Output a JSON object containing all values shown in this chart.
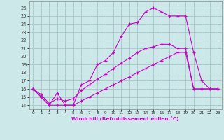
{
  "xlabel": "Windchill (Refroidissement éolien,°C)",
  "background_color": "#cce8e8",
  "grid_color": "#aacccc",
  "line_color": "#cc00cc",
  "x_ticks": [
    0,
    1,
    2,
    3,
    4,
    5,
    6,
    7,
    8,
    9,
    10,
    11,
    12,
    13,
    14,
    15,
    16,
    17,
    18,
    19,
    20,
    21,
    22,
    23
  ],
  "y_ticks": [
    14,
    15,
    16,
    17,
    18,
    19,
    20,
    21,
    22,
    23,
    24,
    25,
    26
  ],
  "xlim": [
    -0.5,
    23.5
  ],
  "ylim": [
    13.5,
    26.8
  ],
  "line1_x": [
    0,
    1,
    2,
    3,
    4,
    5,
    6,
    7,
    8,
    9,
    10,
    11,
    12,
    13,
    14,
    15,
    16,
    17,
    18,
    19,
    20,
    21,
    22,
    23
  ],
  "line1_y": [
    16,
    15,
    14,
    15.5,
    14,
    14,
    16.5,
    17,
    19,
    19.5,
    20.5,
    22.5,
    24,
    24.2,
    25.5,
    26,
    25.5,
    25,
    25,
    25,
    20.5,
    17,
    16,
    16
  ],
  "line2_x": [
    0,
    1,
    2,
    3,
    4,
    5,
    6,
    7,
    8,
    9,
    10,
    11,
    12,
    13,
    14,
    15,
    16,
    17,
    18,
    19,
    20,
    21,
    22,
    23
  ],
  "line2_y": [
    16,
    15.3,
    14.2,
    14.8,
    14.5,
    14.8,
    15.8,
    16.5,
    17.2,
    17.8,
    18.5,
    19.2,
    19.8,
    20.5,
    21.0,
    21.2,
    21.5,
    21.5,
    21.0,
    21.0,
    16,
    16,
    16,
    16
  ],
  "line3_x": [
    0,
    1,
    2,
    3,
    4,
    5,
    6,
    7,
    8,
    9,
    10,
    11,
    12,
    13,
    14,
    15,
    16,
    17,
    18,
    19,
    20,
    21,
    22,
    23
  ],
  "line3_y": [
    16,
    15,
    14,
    14,
    14,
    14,
    14.5,
    15,
    15.5,
    16,
    16.5,
    17,
    17.5,
    18,
    18.5,
    19,
    19.5,
    20,
    20.5,
    20.5,
    16,
    16,
    16,
    16
  ]
}
